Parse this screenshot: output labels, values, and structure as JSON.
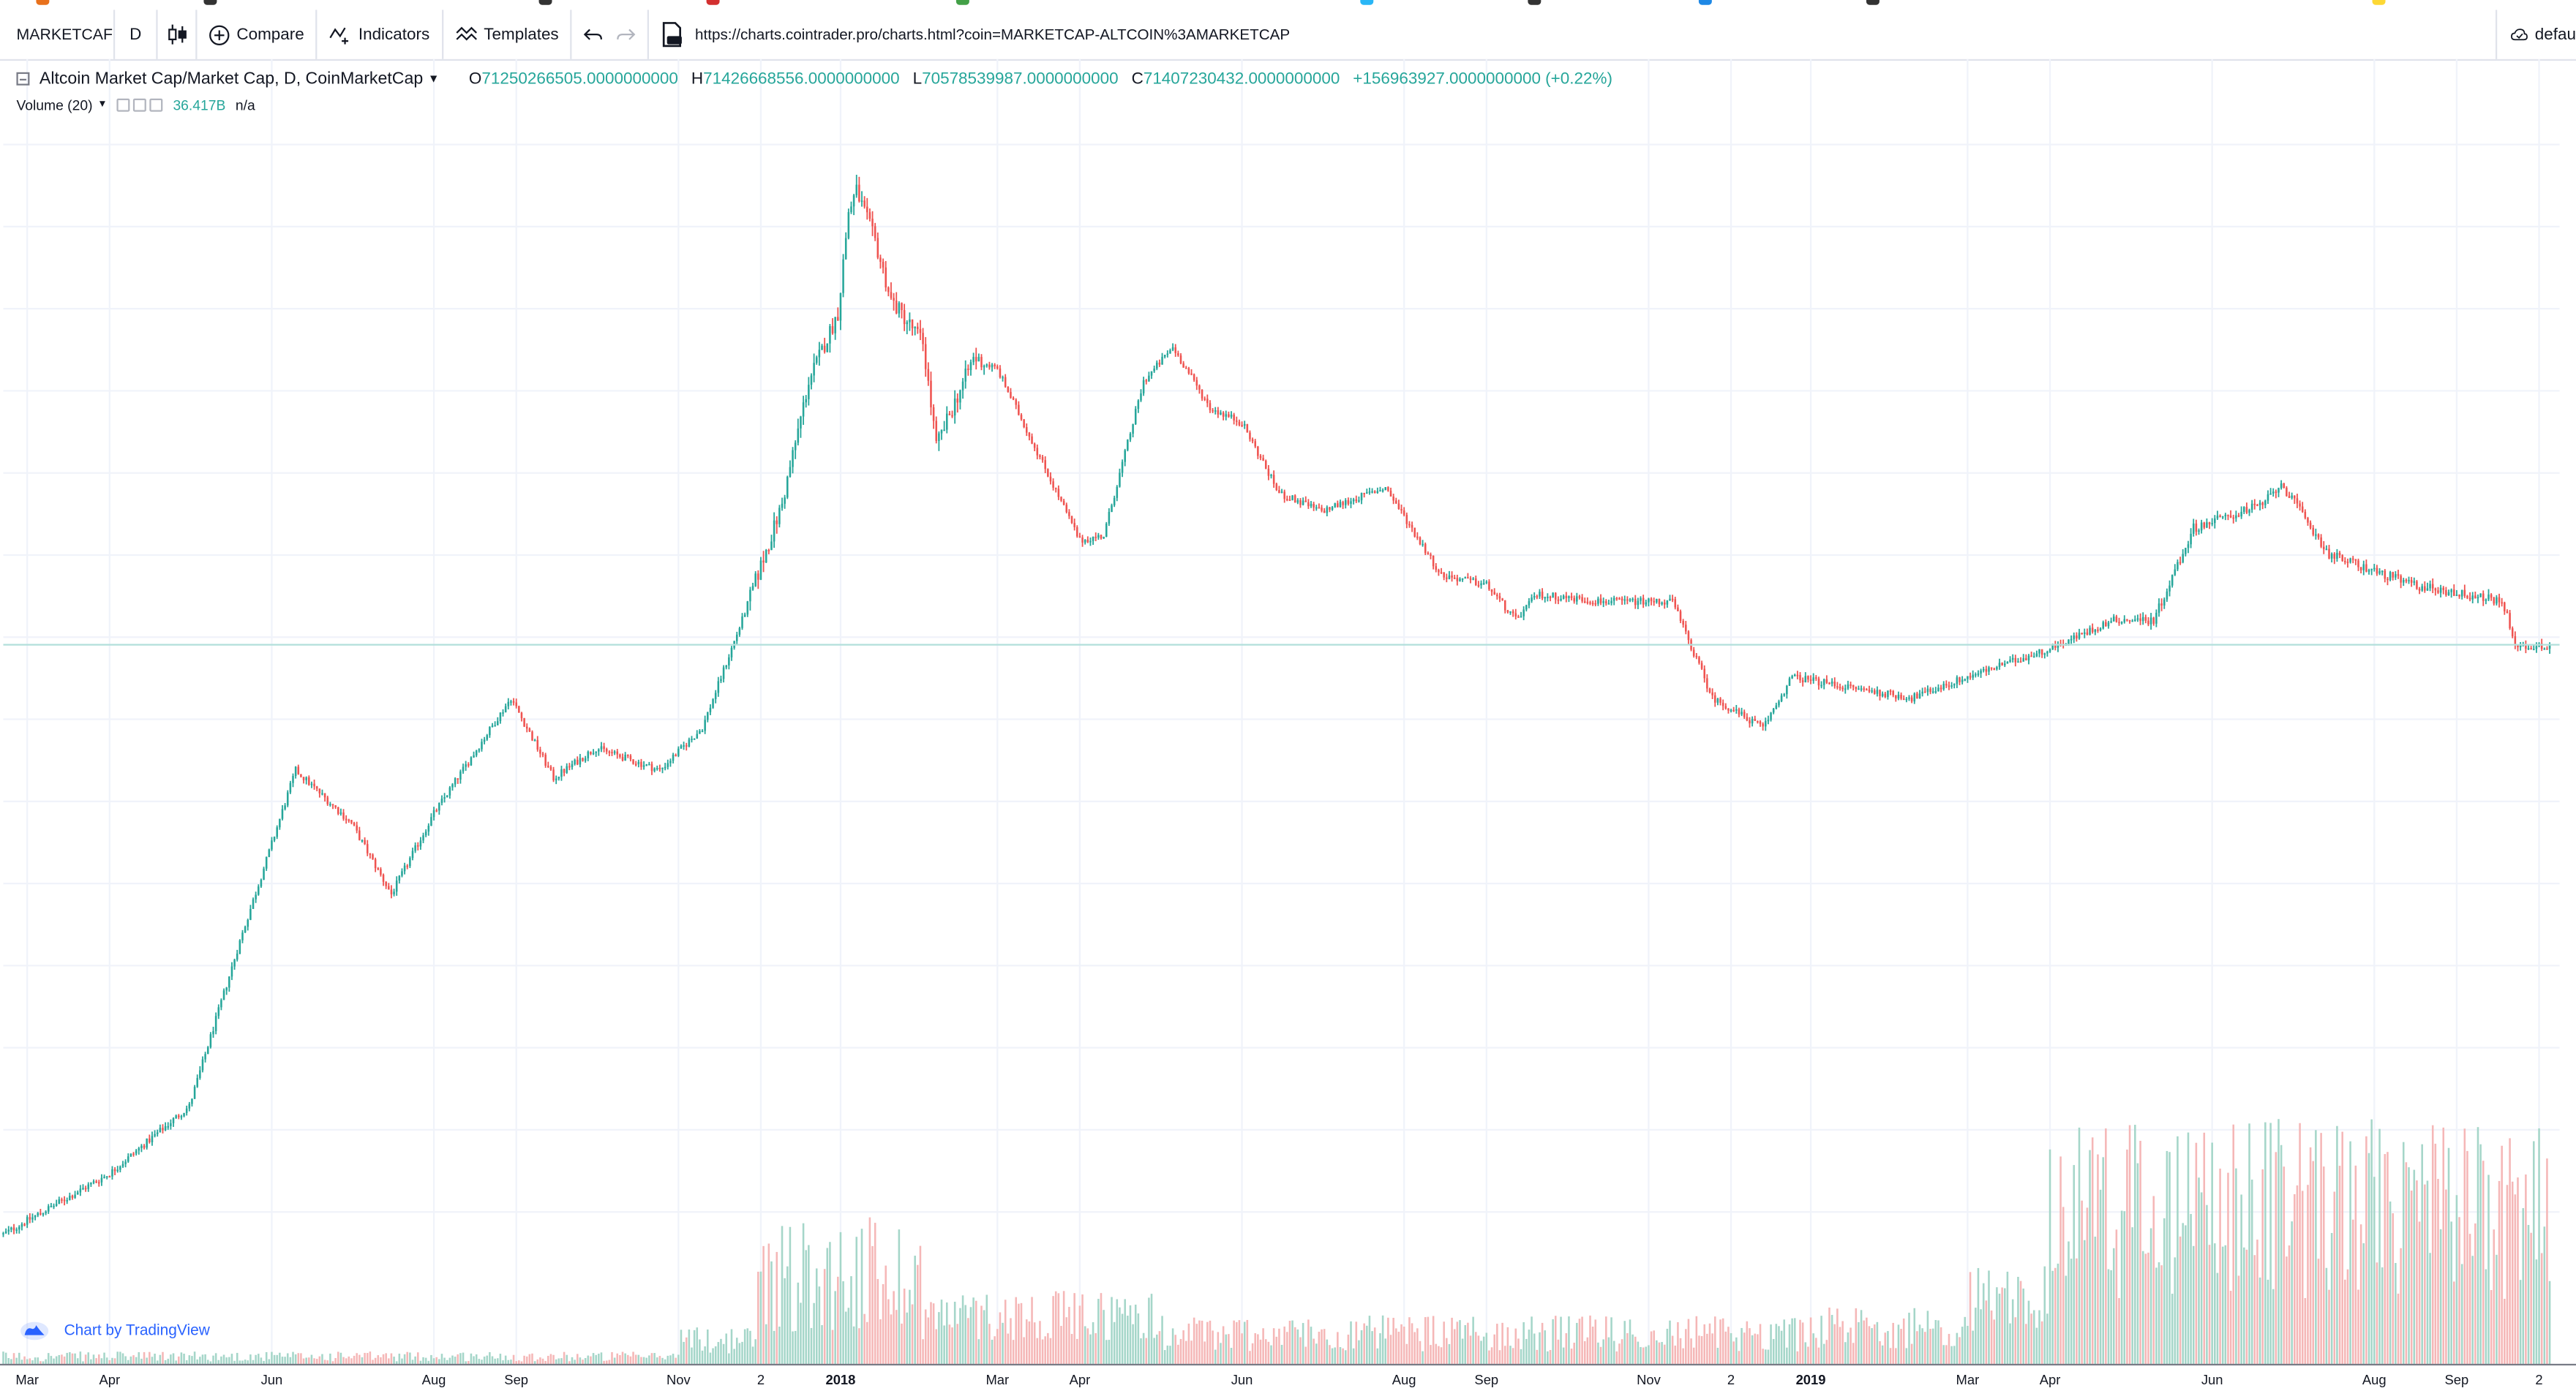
{
  "toolbar": {
    "symbol": "MARKETCAF",
    "resolution": "D",
    "compare_label": "Compare",
    "indicators_label": "Indicators",
    "templates_label": "Templates",
    "url": "https://charts.cointrader.pro/charts.html?coin=MARKETCAP-ALTCOIN%3AMARKETCAP",
    "right_label": "defau"
  },
  "legend": {
    "title": "Altcoin Market Cap/Market Cap, D, CoinMarketCap",
    "open_key": "O",
    "open_value": "71250266505.0000000000",
    "high_key": "H",
    "high_value": "71426668556.0000000000",
    "low_key": "L",
    "low_value": "70578539987.0000000000",
    "close_key": "C",
    "close_value": "71407230432.0000000000",
    "change": "+156963927.0000000000 (+0.22%)",
    "volume_label": "Volume (20)",
    "volume_value": "36.417B",
    "volume_na": "n/a"
  },
  "watermark": {
    "label": "Chart by TradingView"
  },
  "colors": {
    "up": "#26a69a",
    "down": "#ef5350",
    "volume_up": "#a5d6c9",
    "volume_down": "#f5b7b7",
    "accent": "#2962ff",
    "grid": "#f0f3fa"
  },
  "chart_data": {
    "type": "candlestick",
    "title": "Altcoin Market Cap/Market Cap, D, CoinMarketCap",
    "x_tick_labels": [
      {
        "label": "Mar",
        "date": "2017-03-01"
      },
      {
        "label": "Apr",
        "date": "2017-04-01"
      },
      {
        "label": "Jun",
        "date": "2017-06-01"
      },
      {
        "label": "Aug",
        "date": "2017-08-01"
      },
      {
        "label": "Sep",
        "date": "2017-09-01"
      },
      {
        "label": "Nov",
        "date": "2017-11-01"
      },
      {
        "label": "2",
        "date": "2017-12-02"
      },
      {
        "label": "2018",
        "date": "2018-01-01",
        "bold": true
      },
      {
        "label": "Mar",
        "date": "2018-03-01"
      },
      {
        "label": "Apr",
        "date": "2018-04-01"
      },
      {
        "label": "Jun",
        "date": "2018-06-01"
      },
      {
        "label": "Aug",
        "date": "2018-08-01"
      },
      {
        "label": "Sep",
        "date": "2018-09-01"
      },
      {
        "label": "Nov",
        "date": "2018-11-01"
      },
      {
        "label": "2",
        "date": "2018-12-02"
      },
      {
        "label": "2019",
        "date": "2019-01-01",
        "bold": true
      },
      {
        "label": "Mar",
        "date": "2019-03-01"
      },
      {
        "label": "Apr",
        "date": "2019-04-01"
      },
      {
        "label": "Jun",
        "date": "2019-06-01"
      },
      {
        "label": "Aug",
        "date": "2019-08-01"
      },
      {
        "label": "Sep",
        "date": "2019-09-01"
      },
      {
        "label": "2",
        "date": "2019-10-02"
      }
    ],
    "date_range": [
      "2017-02-20",
      "2019-10-06"
    ],
    "approx_close_billions_usd": [
      {
        "date": "2017-02-20",
        "close": 3.0
      },
      {
        "date": "2017-04-01",
        "close": 4.0
      },
      {
        "date": "2017-05-01",
        "close": 5.5
      },
      {
        "date": "2017-05-20",
        "close": 12
      },
      {
        "date": "2017-06-10",
        "close": 27
      },
      {
        "date": "2017-07-01",
        "close": 21
      },
      {
        "date": "2017-07-16",
        "close": 15
      },
      {
        "date": "2017-08-01",
        "close": 22
      },
      {
        "date": "2017-08-30",
        "close": 38
      },
      {
        "date": "2017-09-15",
        "close": 26
      },
      {
        "date": "2017-10-01",
        "close": 30
      },
      {
        "date": "2017-10-25",
        "close": 27
      },
      {
        "date": "2017-11-10",
        "close": 33
      },
      {
        "date": "2017-11-25",
        "close": 55
      },
      {
        "date": "2017-12-10",
        "close": 95
      },
      {
        "date": "2017-12-20",
        "close": 170
      },
      {
        "date": "2017-12-31",
        "close": 235
      },
      {
        "date": "2018-01-04",
        "close": 380
      },
      {
        "date": "2018-01-07",
        "close": 420
      },
      {
        "date": "2018-01-14",
        "close": 330
      },
      {
        "date": "2018-01-20",
        "close": 250
      },
      {
        "date": "2018-02-01",
        "close": 205
      },
      {
        "date": "2018-02-06",
        "close": 125
      },
      {
        "date": "2018-02-20",
        "close": 190
      },
      {
        "date": "2018-03-01",
        "close": 180
      },
      {
        "date": "2018-03-15",
        "close": 125
      },
      {
        "date": "2018-04-01",
        "close": 80
      },
      {
        "date": "2018-04-10",
        "close": 82
      },
      {
        "date": "2018-04-25",
        "close": 170
      },
      {
        "date": "2018-05-06",
        "close": 200
      },
      {
        "date": "2018-05-20",
        "close": 150
      },
      {
        "date": "2018-06-01",
        "close": 140
      },
      {
        "date": "2018-06-15",
        "close": 100
      },
      {
        "date": "2018-07-01",
        "close": 92
      },
      {
        "date": "2018-07-25",
        "close": 103
      },
      {
        "date": "2018-08-15",
        "close": 68
      },
      {
        "date": "2018-09-01",
        "close": 65
      },
      {
        "date": "2018-09-12",
        "close": 55
      },
      {
        "date": "2018-09-20",
        "close": 62
      },
      {
        "date": "2018-10-15",
        "close": 60
      },
      {
        "date": "2018-11-10",
        "close": 60
      },
      {
        "date": "2018-11-25",
        "close": 38
      },
      {
        "date": "2018-12-14",
        "close": 33
      },
      {
        "date": "2018-12-25",
        "close": 42
      },
      {
        "date": "2019-01-15",
        "close": 40
      },
      {
        "date": "2019-02-08",
        "close": 38
      },
      {
        "date": "2019-03-01",
        "close": 42
      },
      {
        "date": "2019-04-01",
        "close": 48
      },
      {
        "date": "2019-04-25",
        "close": 55
      },
      {
        "date": "2019-05-10",
        "close": 55
      },
      {
        "date": "2019-05-25",
        "close": 85
      },
      {
        "date": "2019-06-20",
        "close": 95
      },
      {
        "date": "2019-06-27",
        "close": 105
      },
      {
        "date": "2019-07-15",
        "close": 75
      },
      {
        "date": "2019-08-15",
        "close": 65
      },
      {
        "date": "2019-09-18",
        "close": 60
      },
      {
        "date": "2019-09-24",
        "close": 48
      },
      {
        "date": "2019-10-06",
        "close": 49
      }
    ],
    "volume": "shown as green/red histogram at bottom, spikes around 2018-01 and 2019-04 to 2019-10",
    "grid": true,
    "price_line_visible": true
  }
}
